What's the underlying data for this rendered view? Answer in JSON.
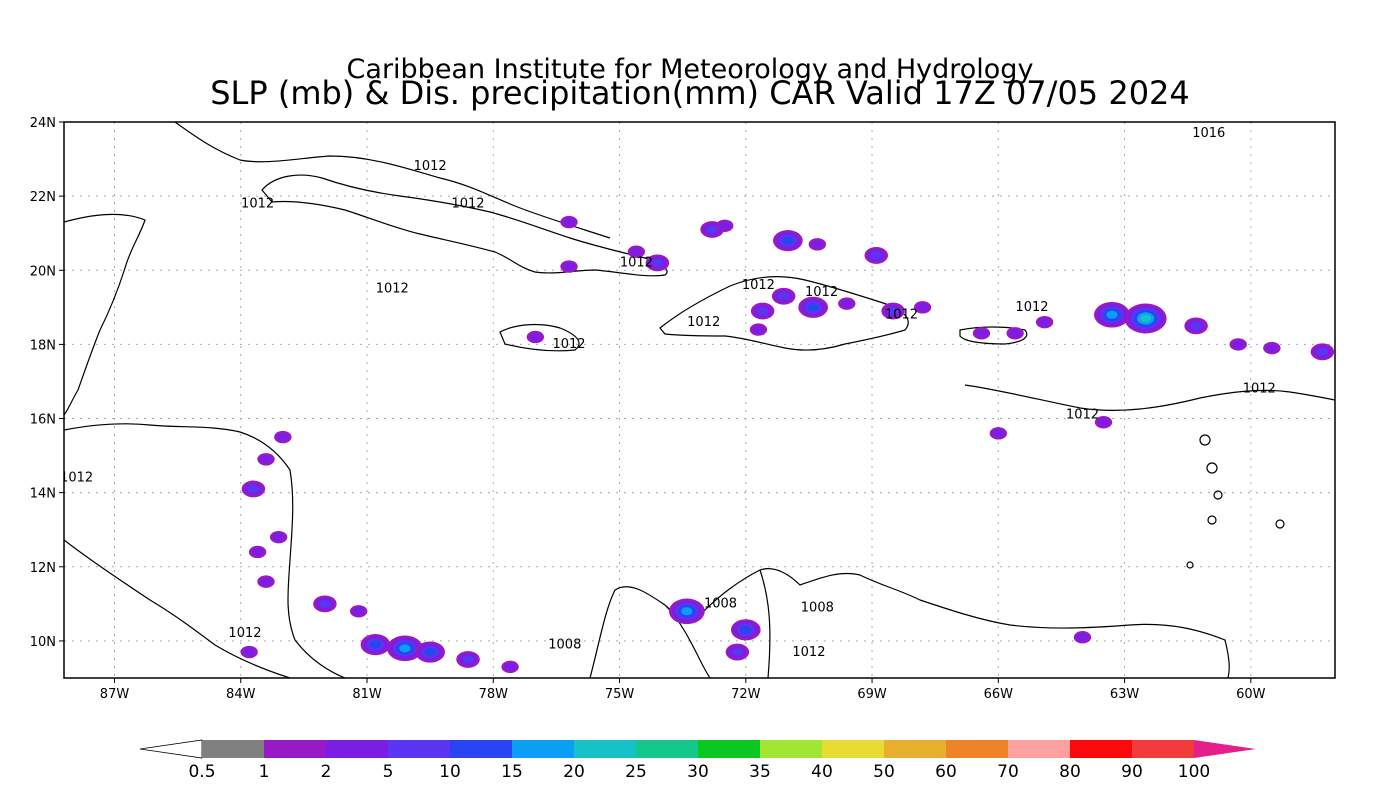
{
  "title": {
    "line1": "Caribbean Institute for Meteorology and Hydrology",
    "line2": "SLP (mb) & Dis. precipitation(mm) CAR Valid 17Z 07/05 2024"
  },
  "map": {
    "lon_range": [
      -88.2,
      -58.0
    ],
    "lat_range": [
      9.0,
      24.0
    ],
    "lon_ticks": [
      {
        "value": -87,
        "label": "87W"
      },
      {
        "value": -84,
        "label": "84W"
      },
      {
        "value": -81,
        "label": "81W"
      },
      {
        "value": -78,
        "label": "78W"
      },
      {
        "value": -75,
        "label": "75W"
      },
      {
        "value": -72,
        "label": "72W"
      },
      {
        "value": -69,
        "label": "69W"
      },
      {
        "value": -66,
        "label": "66W"
      },
      {
        "value": -63,
        "label": "63W"
      },
      {
        "value": -60,
        "label": "60W"
      }
    ],
    "lat_ticks": [
      {
        "value": 24,
        "label": "24N"
      },
      {
        "value": 22,
        "label": "22N"
      },
      {
        "value": 20,
        "label": "20N"
      },
      {
        "value": 18,
        "label": "18N"
      },
      {
        "value": 16,
        "label": "16N"
      },
      {
        "value": 14,
        "label": "14N"
      },
      {
        "value": 12,
        "label": "12N"
      },
      {
        "value": 10,
        "label": "10N"
      }
    ],
    "grid": "dotted",
    "slp_labels": [
      {
        "text": "1012",
        "lon": -79.5,
        "lat": 22.7
      },
      {
        "text": "1012",
        "lon": -83.6,
        "lat": 21.7
      },
      {
        "text": "1012",
        "lon": -78.6,
        "lat": 21.7
      },
      {
        "text": "1012",
        "lon": -74.6,
        "lat": 20.1
      },
      {
        "text": "1012",
        "lon": -80.4,
        "lat": 19.4
      },
      {
        "text": "1012",
        "lon": -76.2,
        "lat": 17.9
      },
      {
        "text": "1012",
        "lon": -73.0,
        "lat": 18.5
      },
      {
        "text": "1012",
        "lon": -71.7,
        "lat": 19.5
      },
      {
        "text": "1012",
        "lon": -70.2,
        "lat": 19.3
      },
      {
        "text": "1012",
        "lon": -68.3,
        "lat": 18.7
      },
      {
        "text": "1012",
        "lon": -65.2,
        "lat": 18.9
      },
      {
        "text": "1012",
        "lon": -64.0,
        "lat": 16.0
      },
      {
        "text": "1012",
        "lon": -59.8,
        "lat": 16.7
      },
      {
        "text": "1016",
        "lon": -61.0,
        "lat": 23.6
      },
      {
        "text": "1012",
        "lon": -87.9,
        "lat": 14.3
      },
      {
        "text": "1012",
        "lon": -83.9,
        "lat": 10.1
      },
      {
        "text": "1008",
        "lon": -72.6,
        "lat": 10.9
      },
      {
        "text": "1008",
        "lon": -70.3,
        "lat": 10.8
      },
      {
        "text": "1012",
        "lon": -70.5,
        "lat": 9.6
      },
      {
        "text": "1008",
        "lon": -76.3,
        "lat": 9.8
      }
    ],
    "precip_cells": [
      {
        "lon": -72.8,
        "lat": 21.1,
        "level": 3
      },
      {
        "lon": -72.5,
        "lat": 21.2,
        "level": 2
      },
      {
        "lon": -71.0,
        "lat": 20.8,
        "level": 4
      },
      {
        "lon": -70.3,
        "lat": 20.7,
        "level": 2
      },
      {
        "lon": -68.9,
        "lat": 20.4,
        "level": 3
      },
      {
        "lon": -74.6,
        "lat": 20.5,
        "level": 2
      },
      {
        "lon": -74.1,
        "lat": 20.2,
        "level": 3
      },
      {
        "lon": -76.2,
        "lat": 20.1,
        "level": 2
      },
      {
        "lon": -76.2,
        "lat": 21.3,
        "level": 2
      },
      {
        "lon": -70.4,
        "lat": 19.0,
        "level": 4
      },
      {
        "lon": -71.1,
        "lat": 19.3,
        "level": 3
      },
      {
        "lon": -71.6,
        "lat": 18.9,
        "level": 3
      },
      {
        "lon": -69.6,
        "lat": 19.1,
        "level": 2
      },
      {
        "lon": -68.5,
        "lat": 18.9,
        "level": 3
      },
      {
        "lon": -67.8,
        "lat": 19.0,
        "level": 2
      },
      {
        "lon": -71.7,
        "lat": 18.4,
        "level": 2
      },
      {
        "lon": -66.4,
        "lat": 18.3,
        "level": 2
      },
      {
        "lon": -65.6,
        "lat": 18.3,
        "level": 2
      },
      {
        "lon": -64.9,
        "lat": 18.6,
        "level": 2
      },
      {
        "lon": -62.5,
        "lat": 18.7,
        "level": 6
      },
      {
        "lon": -63.3,
        "lat": 18.8,
        "level": 5
      },
      {
        "lon": -61.3,
        "lat": 18.5,
        "level": 3
      },
      {
        "lon": -60.3,
        "lat": 18.0,
        "level": 2
      },
      {
        "lon": -59.5,
        "lat": 17.9,
        "level": 2
      },
      {
        "lon": -58.3,
        "lat": 17.8,
        "level": 3
      },
      {
        "lon": -66.0,
        "lat": 15.6,
        "level": 2
      },
      {
        "lon": -63.5,
        "lat": 15.9,
        "level": 2
      },
      {
        "lon": -77.0,
        "lat": 18.2,
        "level": 2
      },
      {
        "lon": -83.0,
        "lat": 15.5,
        "level": 2
      },
      {
        "lon": -83.4,
        "lat": 14.9,
        "level": 2
      },
      {
        "lon": -83.7,
        "lat": 14.1,
        "level": 3
      },
      {
        "lon": -83.1,
        "lat": 12.8,
        "level": 2
      },
      {
        "lon": -83.6,
        "lat": 12.4,
        "level": 2
      },
      {
        "lon": -83.4,
        "lat": 11.6,
        "level": 2
      },
      {
        "lon": -82.0,
        "lat": 11.0,
        "level": 3
      },
      {
        "lon": -81.2,
        "lat": 10.8,
        "level": 2
      },
      {
        "lon": -80.8,
        "lat": 9.9,
        "level": 4
      },
      {
        "lon": -80.1,
        "lat": 9.8,
        "level": 5
      },
      {
        "lon": -79.5,
        "lat": 9.7,
        "level": 4
      },
      {
        "lon": -78.6,
        "lat": 9.5,
        "level": 3
      },
      {
        "lon": -77.6,
        "lat": 9.3,
        "level": 2
      },
      {
        "lon": -83.8,
        "lat": 9.7,
        "level": 2
      },
      {
        "lon": -73.4,
        "lat": 10.8,
        "level": 5
      },
      {
        "lon": -72.0,
        "lat": 10.3,
        "level": 4
      },
      {
        "lon": -72.2,
        "lat": 9.7,
        "level": 3
      },
      {
        "lon": -64.0,
        "lat": 10.1,
        "level": 2
      }
    ]
  },
  "colorbar": {
    "labels": [
      "0.5",
      "1",
      "2",
      "5",
      "10",
      "15",
      "20",
      "25",
      "30",
      "35",
      "40",
      "50",
      "60",
      "70",
      "80",
      "90",
      "100"
    ],
    "colors": [
      "#808080",
      "#9a19c6",
      "#7b1ee3",
      "#5a36f0",
      "#2846f0",
      "#0a9ef5",
      "#14c2c8",
      "#14c88c",
      "#0ac81e",
      "#a0e632",
      "#e6dc32",
      "#e6af2d",
      "#f08228",
      "#ffa0a0",
      "#fa0a0a",
      "#f03c3c"
    ],
    "below_color": "#ffffff",
    "above_color": "#e61e8c"
  }
}
